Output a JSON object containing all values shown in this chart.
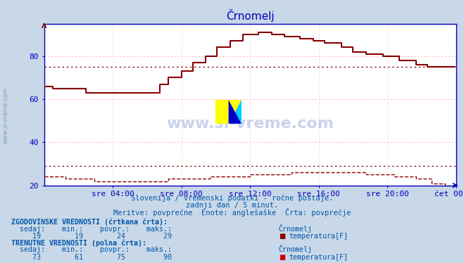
{
  "title": "Črnomelj",
  "bg_color": "#c8d8e8",
  "plot_bg_color": "#ffffff",
  "line_color": "#880000",
  "grid_color": "#ffaaaa",
  "vgrid_color": "#ffcccc",
  "axis_color": "#0000bb",
  "text_color": "#0055aa",
  "ylabel_watermark": "www.si-vreme.com",
  "subtitle1": "Slovenija / vremenski podatki - ročne postaje.",
  "subtitle2": "zadnji dan / 5 minut.",
  "subtitle3": "Meritve: povprečne  Enote: anglešaške  Črta: povprečje",
  "xticklabels": [
    "sre 04:00",
    "sre 08:00",
    "sre 12:00",
    "sre 16:00",
    "sre 20:00",
    "čet 00:00"
  ],
  "xtick_positions": [
    48,
    96,
    144,
    192,
    240,
    288
  ],
  "ylim": [
    20,
    95
  ],
  "yticks": [
    20,
    40,
    60,
    80
  ],
  "total_points": 288,
  "hist_sedaj": 19,
  "hist_min": 19,
  "hist_avg": 24,
  "hist_max": 29,
  "curr_sedaj": 73,
  "curr_min": 61,
  "curr_avg": 75,
  "curr_max": 90,
  "legend_label": "temperatura[F]",
  "stat_head1": "ZGODOVINSKE VREDNOSTI (črtkana črta):",
  "stat_head2": "TRENUTNE VREDNOSTI (polna črta):",
  "col_headers": "  sedaj:    min.:    povpr.:    maks.:    Črnomelj"
}
